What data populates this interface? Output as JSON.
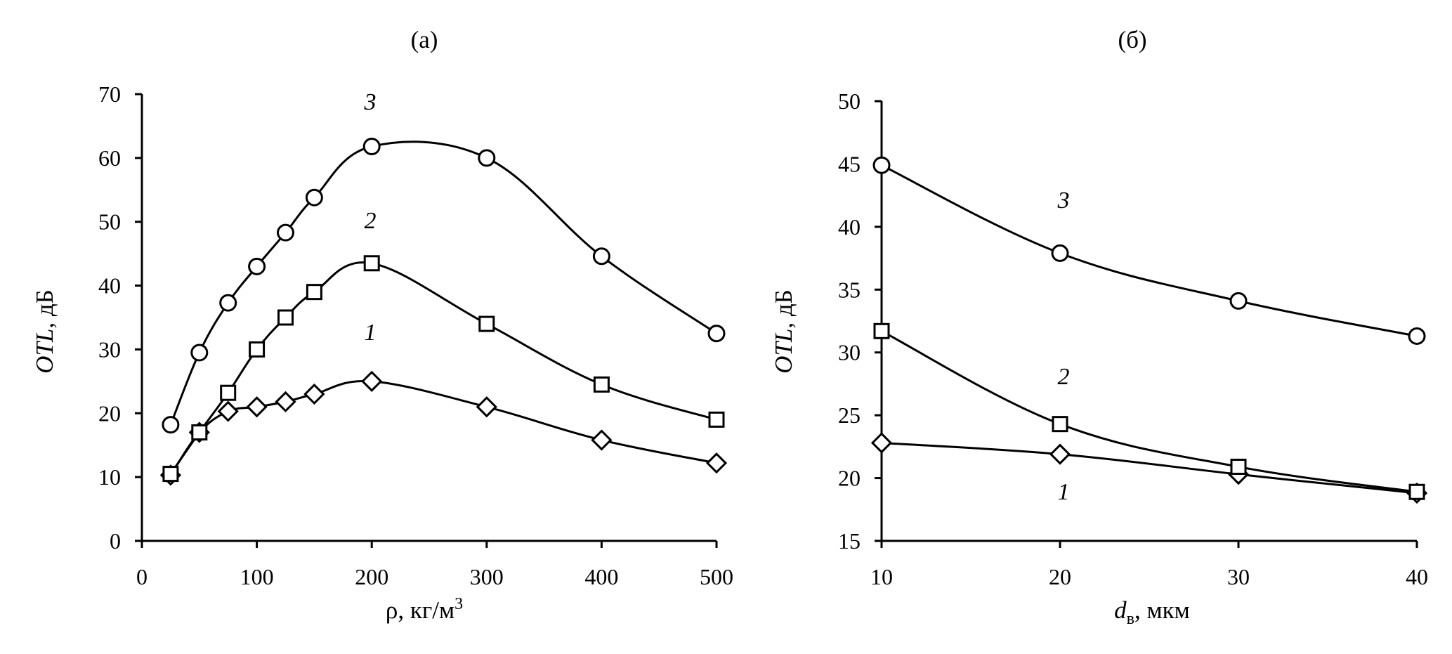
{
  "chart_data": [
    {
      "type": "line",
      "panel_label": "(а)",
      "xlabel": "ρ, кг/м",
      "xlabel_sup": "3",
      "ylabel_italic": "OTL",
      "ylabel_rest": ", дБ",
      "xlim": [
        0,
        500
      ],
      "ylim": [
        0,
        70
      ],
      "xticks": [
        0,
        100,
        200,
        300,
        400,
        500
      ],
      "yticks": [
        0,
        10,
        20,
        30,
        40,
        50,
        60,
        70
      ],
      "grid": false,
      "series": [
        {
          "name": "1",
          "marker": "diamond",
          "x": [
            25,
            50,
            75,
            100,
            125,
            150,
            200,
            300,
            400,
            500
          ],
          "y": [
            10.3,
            17,
            20.3,
            21,
            21.8,
            23,
            25,
            21,
            15.8,
            12.2
          ]
        },
        {
          "name": "2",
          "marker": "square",
          "x": [
            25,
            50,
            75,
            100,
            125,
            150,
            200,
            300,
            400,
            500
          ],
          "y": [
            10.5,
            17,
            23.2,
            30,
            35,
            39,
            43.5,
            34,
            24.5,
            19
          ]
        },
        {
          "name": "3",
          "marker": "circle",
          "x": [
            25,
            50,
            75,
            100,
            125,
            150,
            200,
            300,
            400,
            500
          ],
          "y": [
            18.2,
            29.5,
            37.3,
            43,
            48.3,
            53.8,
            61.8,
            60,
            44.6,
            32.5
          ]
        }
      ]
    },
    {
      "type": "line",
      "panel_label": "(б)",
      "xlabel_italic": "d",
      "xlabel_sub": "в",
      "xlabel_rest": ", мкм",
      "ylabel_italic": "OTL",
      "ylabel_rest": ", дБ",
      "xlim": [
        10,
        40
      ],
      "ylim": [
        15,
        50
      ],
      "xticks": [
        10,
        20,
        30,
        40
      ],
      "yticks": [
        15,
        20,
        25,
        30,
        35,
        40,
        45,
        50
      ],
      "grid": false,
      "series": [
        {
          "name": "1",
          "marker": "diamond",
          "x": [
            10,
            20,
            30,
            40
          ],
          "y": [
            22.8,
            21.9,
            20.3,
            18.8
          ]
        },
        {
          "name": "2",
          "marker": "square",
          "x": [
            10,
            20,
            30,
            40
          ],
          "y": [
            31.7,
            24.3,
            20.9,
            18.9
          ]
        },
        {
          "name": "3",
          "marker": "circle",
          "x": [
            10,
            20,
            30,
            40
          ],
          "y": [
            44.9,
            37.9,
            34.1,
            31.3
          ]
        }
      ]
    }
  ]
}
